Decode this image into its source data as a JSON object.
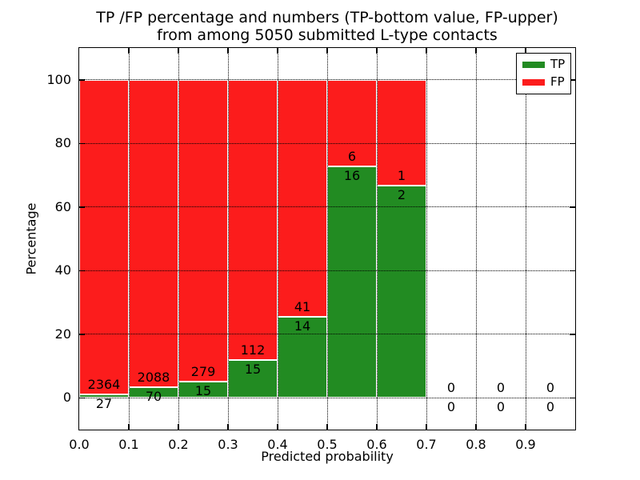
{
  "chart_data": {
    "type": "bar",
    "stacked": true,
    "normalized_to_percent": true,
    "title_lines": [
      "TP /FP percentage and numbers (TP-bottom value, FP-upper)",
      "from among 5050 submitted L-type contacts"
    ],
    "xlabel": "Predicted probability",
    "ylabel": "Percentage",
    "xlim": [
      0.0,
      1.0
    ],
    "ylim": [
      -10,
      110
    ],
    "grid": true,
    "bin_width": 0.1,
    "bins_start": [
      0.0,
      0.1,
      0.2,
      0.3,
      0.4,
      0.5,
      0.6,
      0.7,
      0.8,
      0.9
    ],
    "x_tick_values": [
      0.0,
      0.1,
      0.2,
      0.3,
      0.4,
      0.5,
      0.6,
      0.7,
      0.8,
      0.9
    ],
    "x_tick_labels": [
      "0.0",
      "0.1",
      "0.2",
      "0.3",
      "0.4",
      "0.5",
      "0.6",
      "0.7",
      "0.8",
      "0.9"
    ],
    "y_tick_values": [
      0,
      20,
      40,
      60,
      80,
      100
    ],
    "y_tick_labels": [
      "0",
      "20",
      "40",
      "60",
      "80",
      "100"
    ],
    "series": [
      {
        "name": "TP",
        "color": "#228b22",
        "counts": [
          27,
          70,
          15,
          15,
          14,
          16,
          2,
          0,
          0,
          0
        ]
      },
      {
        "name": "FP",
        "color": "#fc1c1c",
        "counts": [
          2364,
          2088,
          279,
          112,
          41,
          6,
          1,
          0,
          0,
          0
        ]
      }
    ],
    "legend": {
      "position": "upper right",
      "entries": [
        {
          "label": "TP",
          "color": "#228b22"
        },
        {
          "label": "FP",
          "color": "#fc1c1c"
        }
      ]
    }
  }
}
